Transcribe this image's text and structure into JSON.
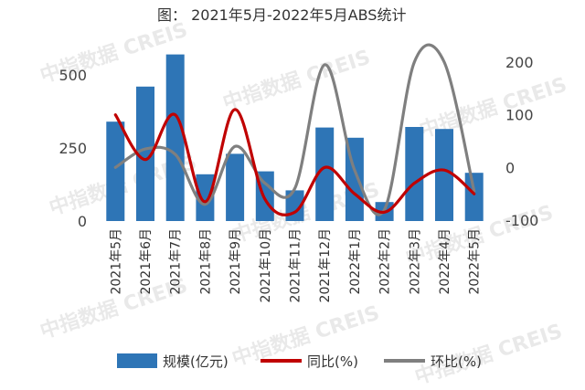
{
  "watermark": "中指数据 CREIS",
  "chart_data": {
    "type": "bar+line",
    "title": "图： 2021年5月-2022年5月ABS统计",
    "categories": [
      "2021年5月",
      "2021年6月",
      "2021年7月",
      "2021年8月",
      "2021年9月",
      "2021年10月",
      "2021年11月",
      "2021年12月",
      "2022年1月",
      "2022年2月",
      "2022年3月",
      "2022年4月",
      "2022年5月"
    ],
    "series": [
      {
        "name": "规模(亿元)",
        "kind": "bar",
        "axis": "left",
        "values": [
          340,
          460,
          570,
          160,
          230,
          170,
          105,
          320,
          285,
          65,
          322,
          315,
          165
        ],
        "color": "#2e75b6"
      },
      {
        "name": "同比(%)",
        "kind": "line",
        "axis": "right",
        "values": [
          100,
          15,
          100,
          -65,
          110,
          -60,
          -85,
          0,
          -50,
          -85,
          -30,
          -5,
          -50
        ],
        "color": "#c00000"
      },
      {
        "name": "环比(%)",
        "kind": "line",
        "axis": "right",
        "values": [
          0,
          35,
          25,
          -70,
          40,
          -30,
          -40,
          195,
          -5,
          -80,
          200,
          200,
          -45
        ],
        "color": "#7f7f7f"
      }
    ],
    "y_left": {
      "min": 0,
      "max": 600,
      "ticks": [
        "0",
        "250",
        "500"
      ],
      "tick_values": [
        0,
        250,
        500
      ]
    },
    "y_right": {
      "min": -100,
      "max": 200,
      "ticks": [
        "-100",
        "0",
        "100",
        "200"
      ],
      "tick_values": [
        -100,
        0,
        100,
        200
      ]
    },
    "legend_position": "bottom",
    "grid": false
  }
}
